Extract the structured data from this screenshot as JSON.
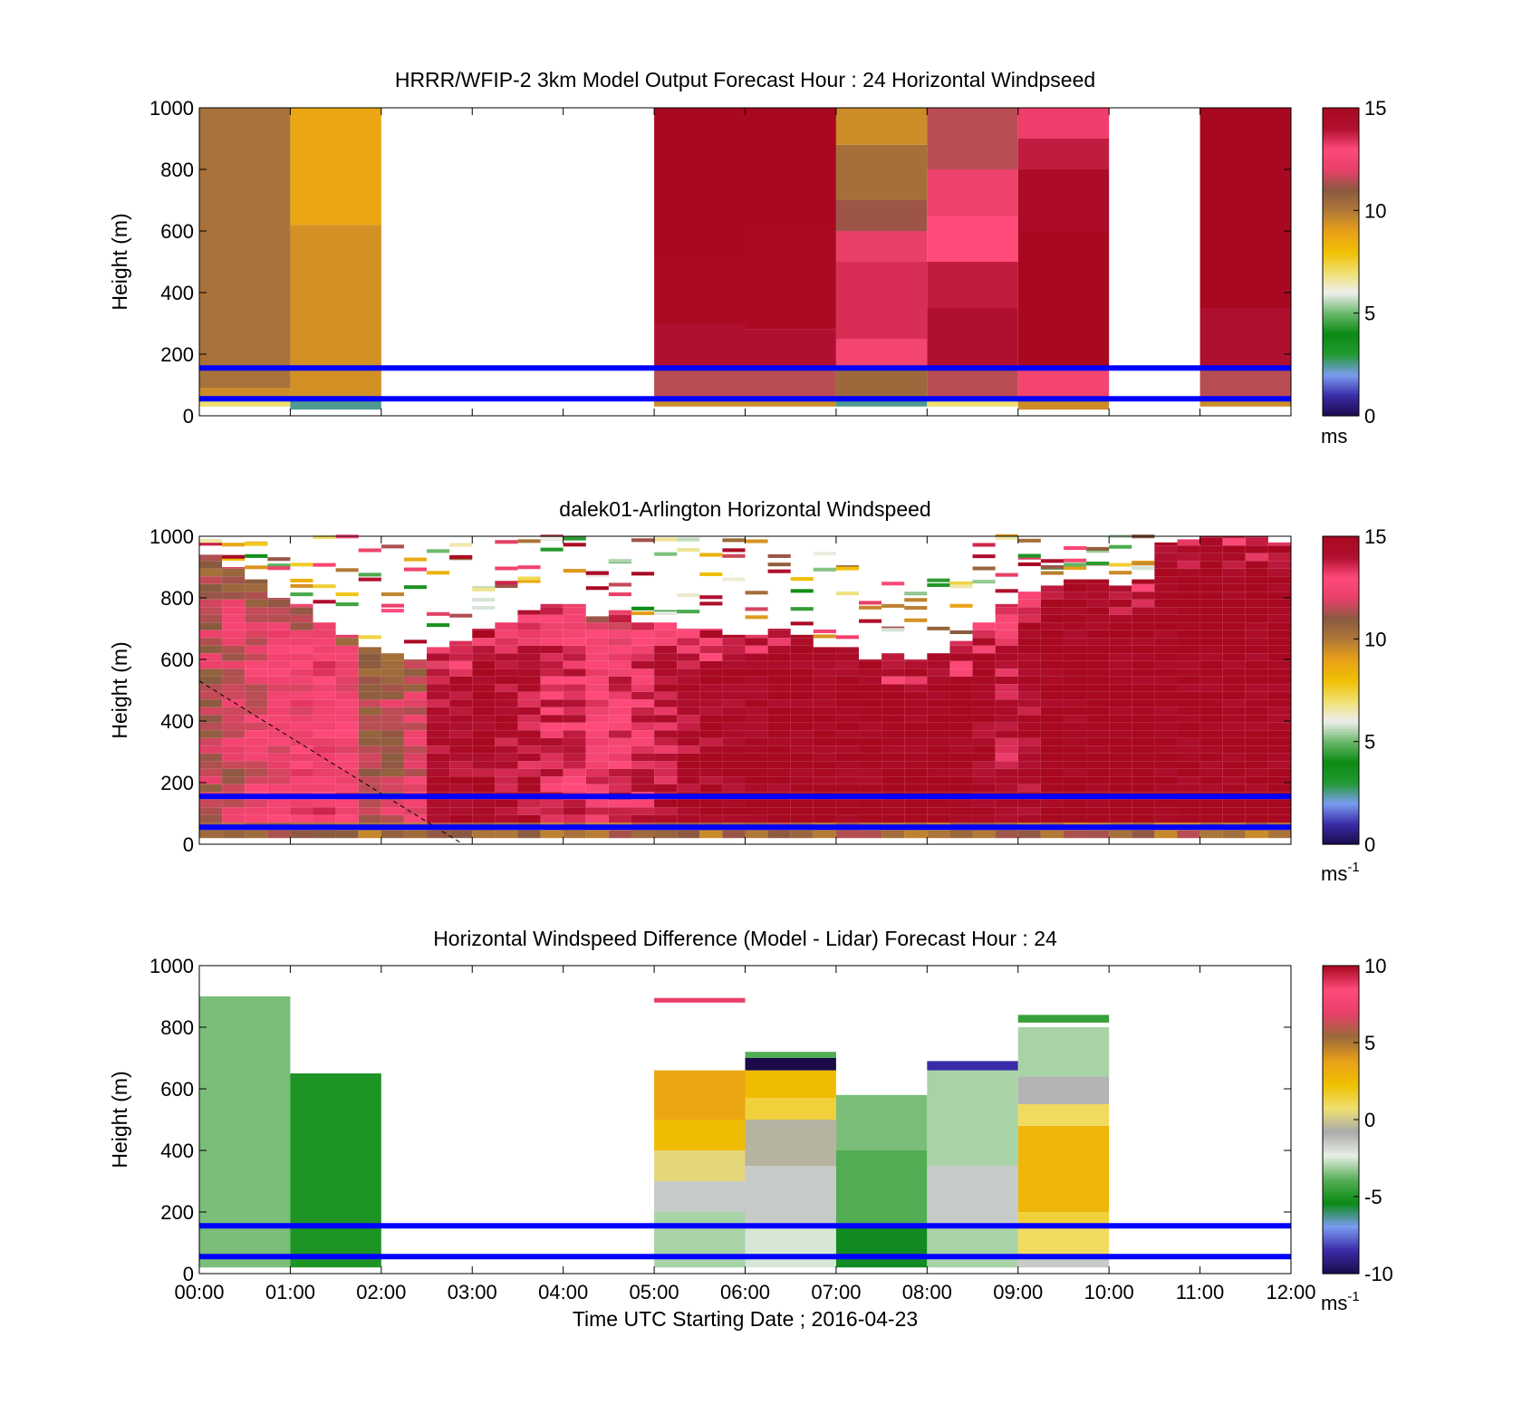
{
  "colors": {
    "background": "#ffffff",
    "guide_lines": "#0000ff",
    "speed_colormap": [
      "#1a0a4a",
      "#3a2ca8",
      "#7a9cf0",
      "#239a33",
      "#0a8a12",
      "#6ab86a",
      "#eeeeee",
      "#f0e070",
      "#f0c000",
      "#e8a018",
      "#b07838",
      "#8a5a40",
      "#e84068",
      "#ff4a7a",
      "#b01030",
      "#a80820"
    ],
    "diff_colormap": [
      "#1a0a4a",
      "#3a2ca8",
      "#7a9cf0",
      "#0a8a12",
      "#5ab05a",
      "#e8efe6",
      "#aaaaaa",
      "#f0e070",
      "#f0c000",
      "#e8a018",
      "#9a6a3a",
      "#e84068",
      "#ff4a7a",
      "#a80820"
    ]
  },
  "x_axis": {
    "label": "Time UTC  Starting Date ; 2016-04-23",
    "tick_labels": [
      "00:00",
      "01:00",
      "02:00",
      "03:00",
      "04:00",
      "05:00",
      "06:00",
      "07:00",
      "08:00",
      "09:00",
      "10:00",
      "11:00",
      "12:00"
    ],
    "range_hours": [
      0,
      12
    ]
  },
  "chart_data": [
    {
      "type": "heatmap",
      "title": "HRRR/WFIP-2 3km Model Output   Forecast Hour : 24 Horizontal Windpseed",
      "ylabel": "Height (m)",
      "ylim": [
        0,
        1000
      ],
      "yticks": [
        "0",
        "200",
        "400",
        "600",
        "800",
        "1000"
      ],
      "show_x_tick_labels": false,
      "colorbar": {
        "ticks": [
          "0",
          "5",
          "10",
          "15"
        ],
        "range": [
          0,
          15
        ],
        "unit": "ms",
        "unit_sup": ""
      },
      "guide_lines_m": [
        55,
        155
      ],
      "x_start_hours": [
        0,
        1,
        5,
        6,
        7,
        8,
        9,
        11
      ],
      "column_width_hours": 1,
      "profiles": [
        {
          "t": 0,
          "cells": [
            [
              30,
              50,
              7
            ],
            [
              50,
              90,
              9.5
            ],
            [
              90,
              1000,
              10.2
            ]
          ]
        },
        {
          "t": 1,
          "cells": [
            [
              20,
              50,
              2.5
            ],
            [
              50,
              620,
              9.4
            ],
            [
              620,
              1000,
              8.8
            ]
          ]
        },
        {
          "t": 5,
          "cells": [
            [
              30,
              50,
              9.5
            ],
            [
              50,
              150,
              11.5
            ],
            [
              150,
              300,
              14
            ],
            [
              300,
              500,
              14.8
            ],
            [
              500,
              1000,
              15
            ]
          ]
        },
        {
          "t": 6,
          "cells": [
            [
              30,
              50,
              9.5
            ],
            [
              50,
              150,
              11.5
            ],
            [
              150,
              280,
              14
            ],
            [
              280,
              600,
              14.8
            ],
            [
              600,
              1000,
              15
            ]
          ]
        },
        {
          "t": 7,
          "cells": [
            [
              30,
              50,
              2.5
            ],
            [
              50,
              160,
              10.5
            ],
            [
              160,
              250,
              12.5
            ],
            [
              250,
              500,
              13.5
            ],
            [
              500,
              600,
              12
            ],
            [
              600,
              700,
              11.2
            ],
            [
              700,
              880,
              10.3
            ],
            [
              880,
              1000,
              9.5
            ]
          ]
        },
        {
          "t": 8,
          "cells": [
            [
              30,
              50,
              7
            ],
            [
              50,
              150,
              11.5
            ],
            [
              150,
              350,
              14
            ],
            [
              350,
              500,
              13.8
            ],
            [
              500,
              650,
              13
            ],
            [
              650,
              800,
              12.2
            ],
            [
              800,
              1000,
              11.5
            ]
          ]
        },
        {
          "t": 9,
          "cells": [
            [
              20,
              50,
              9.5
            ],
            [
              50,
              150,
              12.5
            ],
            [
              150,
              600,
              15
            ],
            [
              600,
              800,
              14.5
            ],
            [
              800,
              900,
              13.8
            ],
            [
              900,
              1000,
              13.2
            ]
          ]
        },
        {
          "t": 11,
          "cells": [
            [
              30,
              50,
              9.5
            ],
            [
              50,
              150,
              11.5
            ],
            [
              150,
              350,
              14
            ],
            [
              350,
              1000,
              15
            ]
          ]
        }
      ]
    },
    {
      "type": "heatmap",
      "title": "dalek01-Arlington  Horizontal Windspeed",
      "ylabel": "Height (m)",
      "ylim": [
        0,
        1000
      ],
      "yticks": [
        "0",
        "200",
        "400",
        "600",
        "800",
        "1000"
      ],
      "show_x_tick_labels": false,
      "colorbar": {
        "ticks": [
          "0",
          "5",
          "10",
          "15"
        ],
        "range": [
          0,
          15
        ],
        "unit": "ms",
        "unit_sup": "-1"
      },
      "guide_lines_m": [
        55,
        155
      ],
      "column_width_hours": 0.25,
      "columns": [
        {
          "t": 0.0,
          "top": 940,
          "v": 11.5
        },
        {
          "t": 0.25,
          "top": 900,
          "v": 11.8
        },
        {
          "t": 0.5,
          "top": 860,
          "v": 12.2
        },
        {
          "t": 0.75,
          "top": 800,
          "v": 12.5
        },
        {
          "t": 1.0,
          "top": 780,
          "v": 12.6
        },
        {
          "t": 1.25,
          "top": 720,
          "v": 12.8
        },
        {
          "t": 1.5,
          "top": 680,
          "v": 12.5
        },
        {
          "t": 1.75,
          "top": 640,
          "v": 11.5
        },
        {
          "t": 2.0,
          "top": 620,
          "v": 11.5
        },
        {
          "t": 2.25,
          "top": 600,
          "v": 12.0
        },
        {
          "t": 2.5,
          "top": 640,
          "v": 14.2
        },
        {
          "t": 2.75,
          "top": 660,
          "v": 14.5
        },
        {
          "t": 3.0,
          "top": 700,
          "v": 14.5
        },
        {
          "t": 3.25,
          "top": 720,
          "v": 14.2
        },
        {
          "t": 3.5,
          "top": 760,
          "v": 14.0
        },
        {
          "t": 3.75,
          "top": 780,
          "v": 13.6
        },
        {
          "t": 4.0,
          "top": 780,
          "v": 13.5
        },
        {
          "t": 4.25,
          "top": 740,
          "v": 13.0
        },
        {
          "t": 4.5,
          "top": 760,
          "v": 13.2
        },
        {
          "t": 4.75,
          "top": 720,
          "v": 13.5
        },
        {
          "t": 5.0,
          "top": 720,
          "v": 14.0
        },
        {
          "t": 5.25,
          "top": 700,
          "v": 14.2
        },
        {
          "t": 5.5,
          "top": 700,
          "v": 14.5
        },
        {
          "t": 5.75,
          "top": 680,
          "v": 14.7
        },
        {
          "t": 6.0,
          "top": 680,
          "v": 14.8
        },
        {
          "t": 6.25,
          "top": 700,
          "v": 14.9
        },
        {
          "t": 6.5,
          "top": 680,
          "v": 15.0
        },
        {
          "t": 6.75,
          "top": 640,
          "v": 15.0
        },
        {
          "t": 7.0,
          "top": 640,
          "v": 15.0
        },
        {
          "t": 7.25,
          "top": 600,
          "v": 15.0
        },
        {
          "t": 7.5,
          "top": 620,
          "v": 15.0
        },
        {
          "t": 7.75,
          "top": 600,
          "v": 15.0
        },
        {
          "t": 8.0,
          "top": 620,
          "v": 15.0
        },
        {
          "t": 8.25,
          "top": 660,
          "v": 15.0
        },
        {
          "t": 8.5,
          "top": 720,
          "v": 14.6
        },
        {
          "t": 8.75,
          "top": 780,
          "v": 14.0
        },
        {
          "t": 9.0,
          "top": 820,
          "v": 14.4
        },
        {
          "t": 9.25,
          "top": 840,
          "v": 15.0
        },
        {
          "t": 9.5,
          "top": 860,
          "v": 15.0
        },
        {
          "t": 9.75,
          "top": 860,
          "v": 15.0
        },
        {
          "t": 10.0,
          "top": 840,
          "v": 15.0
        },
        {
          "t": 10.25,
          "top": 860,
          "v": 15.0
        },
        {
          "t": 10.5,
          "top": 980,
          "v": 15.0
        },
        {
          "t": 10.75,
          "top": 990,
          "v": 15.0
        },
        {
          "t": 11.0,
          "top": 1000,
          "v": 15.0
        },
        {
          "t": 11.25,
          "top": 1000,
          "v": 15.0
        },
        {
          "t": 11.5,
          "top": 1000,
          "v": 15.0
        },
        {
          "t": 11.75,
          "top": 980,
          "v": 15.0
        }
      ],
      "dashed_line": {
        "from": [
          0,
          530
        ],
        "to": [
          2.9,
          0
        ]
      }
    },
    {
      "type": "heatmap",
      "title": "Horizontal Windspeed Difference (Model - Lidar) Forecast Hour : 24",
      "xlabel": "Time UTC  Starting Date ; 2016-04-23",
      "ylabel": "Height (m)",
      "ylim": [
        0,
        1000
      ],
      "yticks": [
        "0",
        "200",
        "400",
        "600",
        "800",
        "1000"
      ],
      "show_x_tick_labels": true,
      "colorbar": {
        "ticks": [
          "-10",
          "-5",
          "0",
          "5",
          "10"
        ],
        "range": [
          -10,
          10
        ],
        "unit": "ms",
        "unit_sup": "-1"
      },
      "guide_lines_m": [
        55,
        155
      ],
      "column_width_hours": 1,
      "profiles": [
        {
          "t": 0,
          "cells": [
            [
              20,
              900,
              -3.5
            ]
          ]
        },
        {
          "t": 1,
          "cells": [
            [
              20,
              650,
              -5.0
            ]
          ]
        },
        {
          "t": 5,
          "cells": [
            [
              20,
              200,
              -3.0
            ],
            [
              200,
              300,
              -1.5
            ],
            [
              300,
              400,
              0.5
            ],
            [
              400,
              500,
              2.5
            ],
            [
              500,
              660,
              3.5
            ],
            [
              880,
              895,
              7.0
            ]
          ]
        },
        {
          "t": 6,
          "cells": [
            [
              20,
              150,
              -2.5
            ],
            [
              150,
              350,
              -1.5
            ],
            [
              350,
              500,
              -0.5
            ],
            [
              500,
              570,
              1.5
            ],
            [
              570,
              660,
              2.5
            ],
            [
              660,
              700,
              -10.0
            ],
            [
              700,
              720,
              -4.0
            ]
          ]
        },
        {
          "t": 7,
          "cells": [
            [
              20,
              150,
              -5.5
            ],
            [
              150,
              400,
              -4.0
            ],
            [
              400,
              580,
              -3.5
            ]
          ]
        },
        {
          "t": 8,
          "cells": [
            [
              20,
              150,
              -3.0
            ],
            [
              150,
              350,
              -1.5
            ],
            [
              350,
              660,
              -3.0
            ],
            [
              660,
              690,
              -8.5
            ]
          ]
        },
        {
          "t": 9,
          "cells": [
            [
              20,
              50,
              -1.5
            ],
            [
              50,
              150,
              1.0
            ],
            [
              150,
              200,
              1.5
            ],
            [
              200,
              480,
              2.8
            ],
            [
              480,
              550,
              1.0
            ],
            [
              550,
              640,
              -1.0
            ],
            [
              640,
              800,
              -3.0
            ],
            [
              815,
              840,
              -4.5
            ]
          ]
        }
      ]
    }
  ]
}
